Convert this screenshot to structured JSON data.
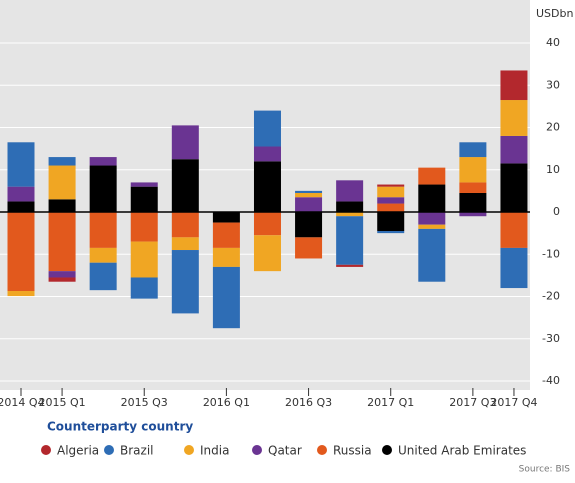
{
  "chart_data": {
    "type": "stacked-bar",
    "y_label": "USDbn",
    "categories": [
      "2014 Q4",
      "2015 Q1",
      null,
      "2015 Q3",
      null,
      "2016 Q1",
      null,
      "2016 Q3",
      null,
      "2017 Q1",
      null,
      "2017 Q3",
      "2017 Q4"
    ],
    "legend_title": "Counterparty country",
    "series": [
      {
        "name": "Algeria",
        "color": "#b3282d",
        "values": [
          0,
          -1,
          0,
          0,
          0,
          0,
          0,
          0,
          -0.5,
          0.5,
          0,
          0,
          7
        ]
      },
      {
        "name": "Brazil",
        "color": "#2e6db5",
        "values": [
          10.5,
          2,
          -6.5,
          -5,
          -15,
          -14.5,
          8.5,
          0.5,
          -11.5,
          -0.5,
          -12.5,
          3.5,
          -9.5
        ]
      },
      {
        "name": "India",
        "color": "#f0a623",
        "values": [
          -1.2,
          8,
          -3.5,
          -8.5,
          -3,
          -4.5,
          -8.5,
          1,
          -1,
          2.5,
          -1,
          6,
          8.5
        ]
      },
      {
        "name": "Qatar",
        "color": "#6a3492",
        "values": [
          3.5,
          -1.5,
          2,
          1,
          8,
          0,
          3.5,
          3.5,
          5,
          1.5,
          -3,
          -1,
          6.5
        ]
      },
      {
        "name": "Russia",
        "color": "#e2591d",
        "values": [
          -18.7,
          -14,
          -8.5,
          -7,
          -6,
          -6,
          -5.5,
          -5,
          0,
          2,
          4,
          2.5,
          -8.5
        ]
      },
      {
        "name": "United Arab Emirates",
        "color": "#000000",
        "values": [
          2.5,
          3,
          11,
          6,
          12.5,
          -2.5,
          12,
          -6,
          2.5,
          -4.5,
          6.5,
          4.5,
          11.5
        ]
      }
    ],
    "ylim": [
      -40,
      40
    ],
    "yticks": [
      -40,
      -30,
      -20,
      -10,
      0,
      10,
      20,
      30,
      40
    ],
    "grid": true,
    "source": "Source: BIS"
  }
}
